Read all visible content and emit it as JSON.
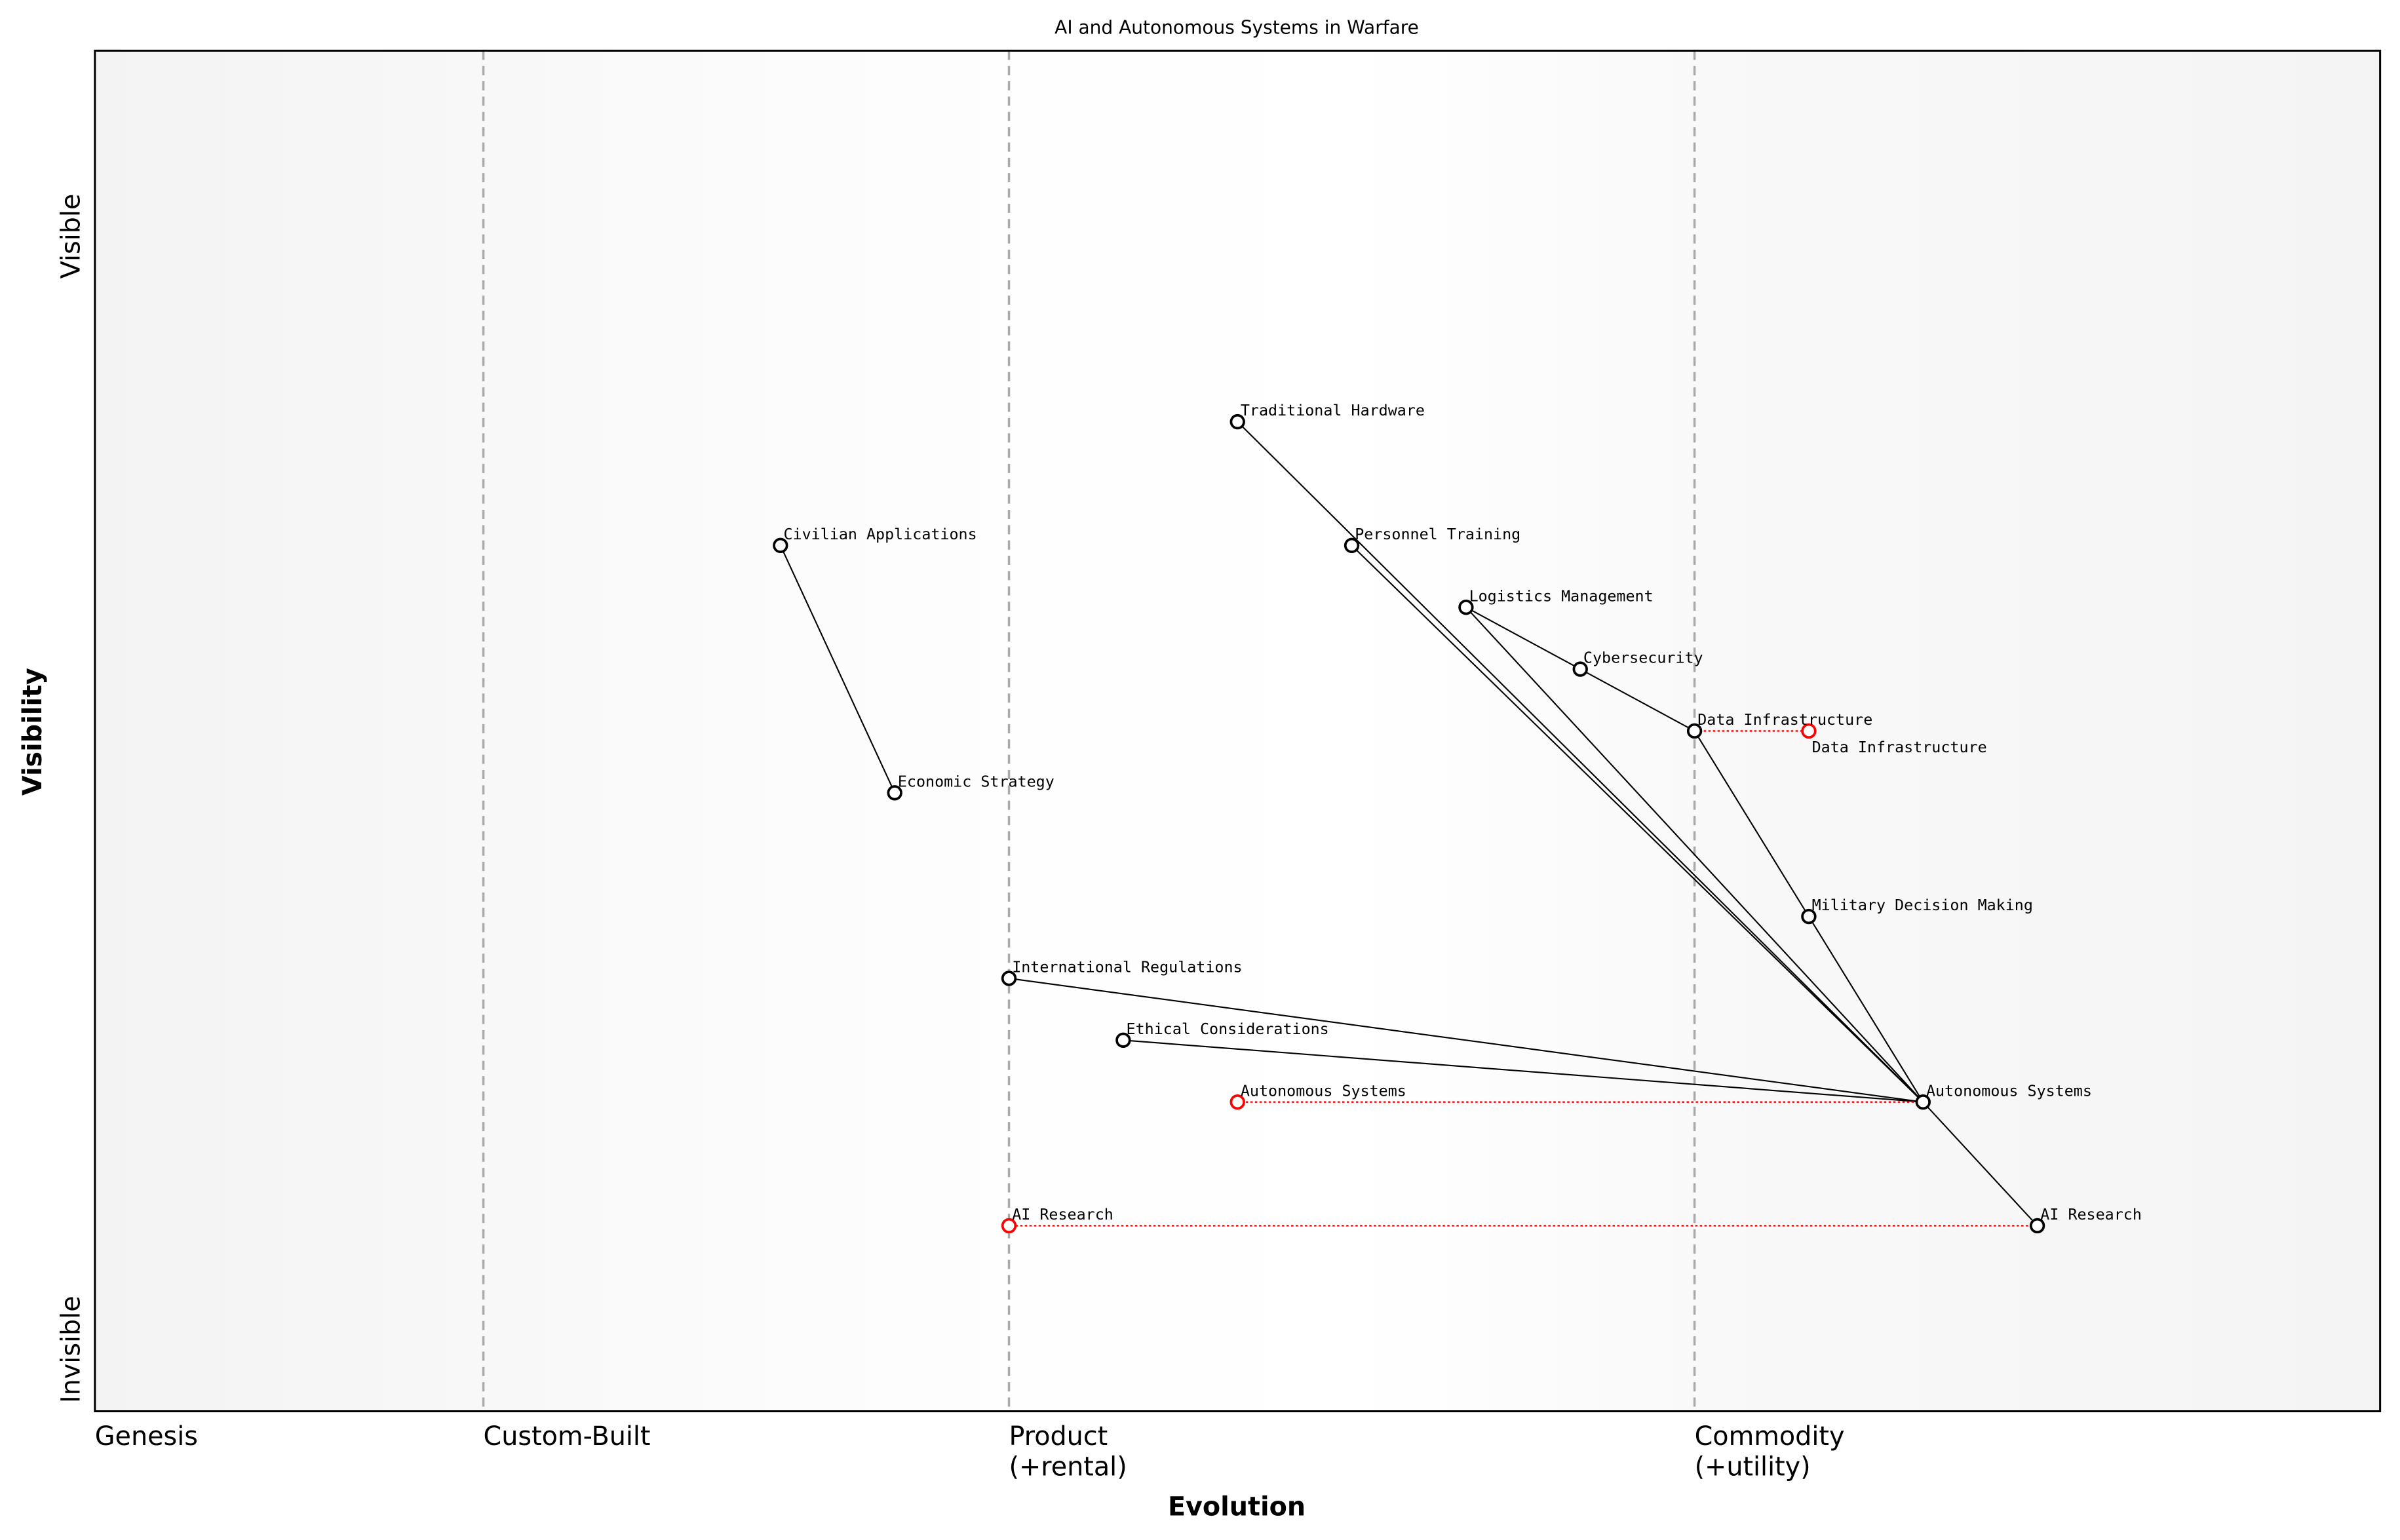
{
  "title": "AI and Autonomous Systems in Warfare",
  "xlabel": "Evolution",
  "ylabel": "Visibility",
  "y_ticks": [
    {
      "label": "Visible",
      "value": 0.95
    },
    {
      "label": "Invisible",
      "value": 0.05
    }
  ],
  "stages": [
    {
      "label": "Genesis",
      "value": 0.0,
      "line": false
    },
    {
      "label": "Custom-Built",
      "value": 0.17,
      "line": true
    },
    {
      "label": "Product",
      "label2": "(+rental)",
      "value": 0.4,
      "line": true
    },
    {
      "label": "Commodity",
      "label2": "(+utility)",
      "value": 0.7,
      "line": true
    }
  ],
  "xlim": [
    0,
    1
  ],
  "ylim": [
    0,
    1.1
  ],
  "colors": {
    "component": "#000000",
    "moved": "#ff0000",
    "stage_line": "#aaaaaa",
    "band_edge": "#f3f3f3"
  },
  "components": [
    {
      "name": "Traditional Hardware",
      "evolution": 0.5,
      "visibility": 0.8
    },
    {
      "name": "Civilian Applications",
      "evolution": 0.3,
      "visibility": 0.7
    },
    {
      "name": "Personnel Training",
      "evolution": 0.55,
      "visibility": 0.7
    },
    {
      "name": "Logistics Management",
      "evolution": 0.6,
      "visibility": 0.65
    },
    {
      "name": "Cybersecurity",
      "evolution": 0.65,
      "visibility": 0.6
    },
    {
      "name": "Data Infrastructure",
      "evolution": 0.7,
      "visibility": 0.55
    },
    {
      "name": "Economic Strategy",
      "evolution": 0.35,
      "visibility": 0.5
    },
    {
      "name": "Military Decision Making",
      "evolution": 0.75,
      "visibility": 0.4
    },
    {
      "name": "International Regulations",
      "evolution": 0.4,
      "visibility": 0.35
    },
    {
      "name": "Ethical Considerations",
      "evolution": 0.45,
      "visibility": 0.3
    },
    {
      "name": "Autonomous Systems",
      "evolution": 0.8,
      "visibility": 0.25
    },
    {
      "name": "AI Research",
      "evolution": 0.85,
      "visibility": 0.15
    }
  ],
  "moved": [
    {
      "name": "Data Infrastructure",
      "from": 0.7,
      "to": 0.75,
      "visibility": 0.55
    },
    {
      "name": "Autonomous Systems",
      "from": 0.8,
      "to": 0.5,
      "visibility": 0.25
    },
    {
      "name": "AI Research",
      "from": 0.85,
      "to": 0.4,
      "visibility": 0.15
    }
  ],
  "links": [
    [
      "Traditional Hardware",
      "Autonomous Systems"
    ],
    [
      "Personnel Training",
      "Autonomous Systems"
    ],
    [
      "Logistics Management",
      "Cybersecurity"
    ],
    [
      "Logistics Management",
      "Autonomous Systems"
    ],
    [
      "Cybersecurity",
      "Data Infrastructure"
    ],
    [
      "Data Infrastructure",
      "Military Decision Making"
    ],
    [
      "Military Decision Making",
      "Autonomous Systems"
    ],
    [
      "International Regulations",
      "Autonomous Systems"
    ],
    [
      "Ethical Considerations",
      "Autonomous Systems"
    ],
    [
      "Autonomous Systems",
      "AI Research"
    ],
    [
      "Civilian Applications",
      "Economic Strategy"
    ]
  ]
}
